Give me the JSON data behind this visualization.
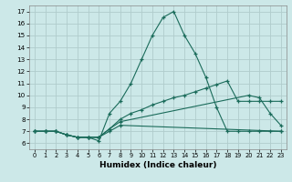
{
  "title": "",
  "xlabel": "Humidex (Indice chaleur)",
  "bg_color": "#cce8e8",
  "grid_color": "#b0cccc",
  "line_color": "#1a6b5a",
  "xlim": [
    -0.5,
    23.5
  ],
  "ylim": [
    5.5,
    17.5
  ],
  "yticks": [
    6,
    7,
    8,
    9,
    10,
    11,
    12,
    13,
    14,
    15,
    16,
    17
  ],
  "xticks": [
    0,
    1,
    2,
    3,
    4,
    5,
    6,
    7,
    8,
    9,
    10,
    11,
    12,
    13,
    14,
    15,
    16,
    17,
    18,
    19,
    20,
    21,
    22,
    23
  ],
  "lines": [
    {
      "x": [
        0,
        1,
        2,
        3,
        4,
        5,
        6,
        7,
        8,
        9,
        10,
        11,
        12,
        13,
        14,
        15,
        16,
        17,
        18,
        19,
        20,
        21,
        22,
        23
      ],
      "y": [
        7,
        7,
        7,
        6.7,
        6.5,
        6.5,
        6.2,
        8.5,
        9.5,
        11.0,
        13.0,
        15.0,
        16.5,
        17.0,
        15.0,
        13.5,
        11.5,
        9.0,
        7.0,
        7.0,
        7.0,
        7.0,
        7.0,
        7.0
      ]
    },
    {
      "x": [
        0,
        1,
        2,
        3,
        4,
        5,
        6,
        7,
        8,
        9,
        10,
        11,
        12,
        13,
        14,
        15,
        16,
        17,
        18,
        19,
        20,
        21,
        22,
        23
      ],
      "y": [
        7,
        7,
        7,
        6.7,
        6.5,
        6.5,
        6.5,
        7.2,
        8.0,
        8.5,
        8.8,
        9.2,
        9.5,
        9.8,
        10.0,
        10.3,
        10.6,
        10.9,
        11.2,
        9.5,
        9.5,
        9.5,
        9.5,
        9.5
      ]
    },
    {
      "x": [
        0,
        1,
        2,
        3,
        4,
        5,
        6,
        7,
        8,
        20,
        21,
        22,
        23
      ],
      "y": [
        7,
        7,
        7,
        6.7,
        6.5,
        6.5,
        6.5,
        7.2,
        7.8,
        10.0,
        9.8,
        8.5,
        7.5
      ]
    },
    {
      "x": [
        0,
        1,
        2,
        3,
        4,
        5,
        6,
        7,
        8,
        23
      ],
      "y": [
        7,
        7,
        7,
        6.7,
        6.5,
        6.5,
        6.5,
        7.0,
        7.5,
        7.0
      ]
    }
  ]
}
